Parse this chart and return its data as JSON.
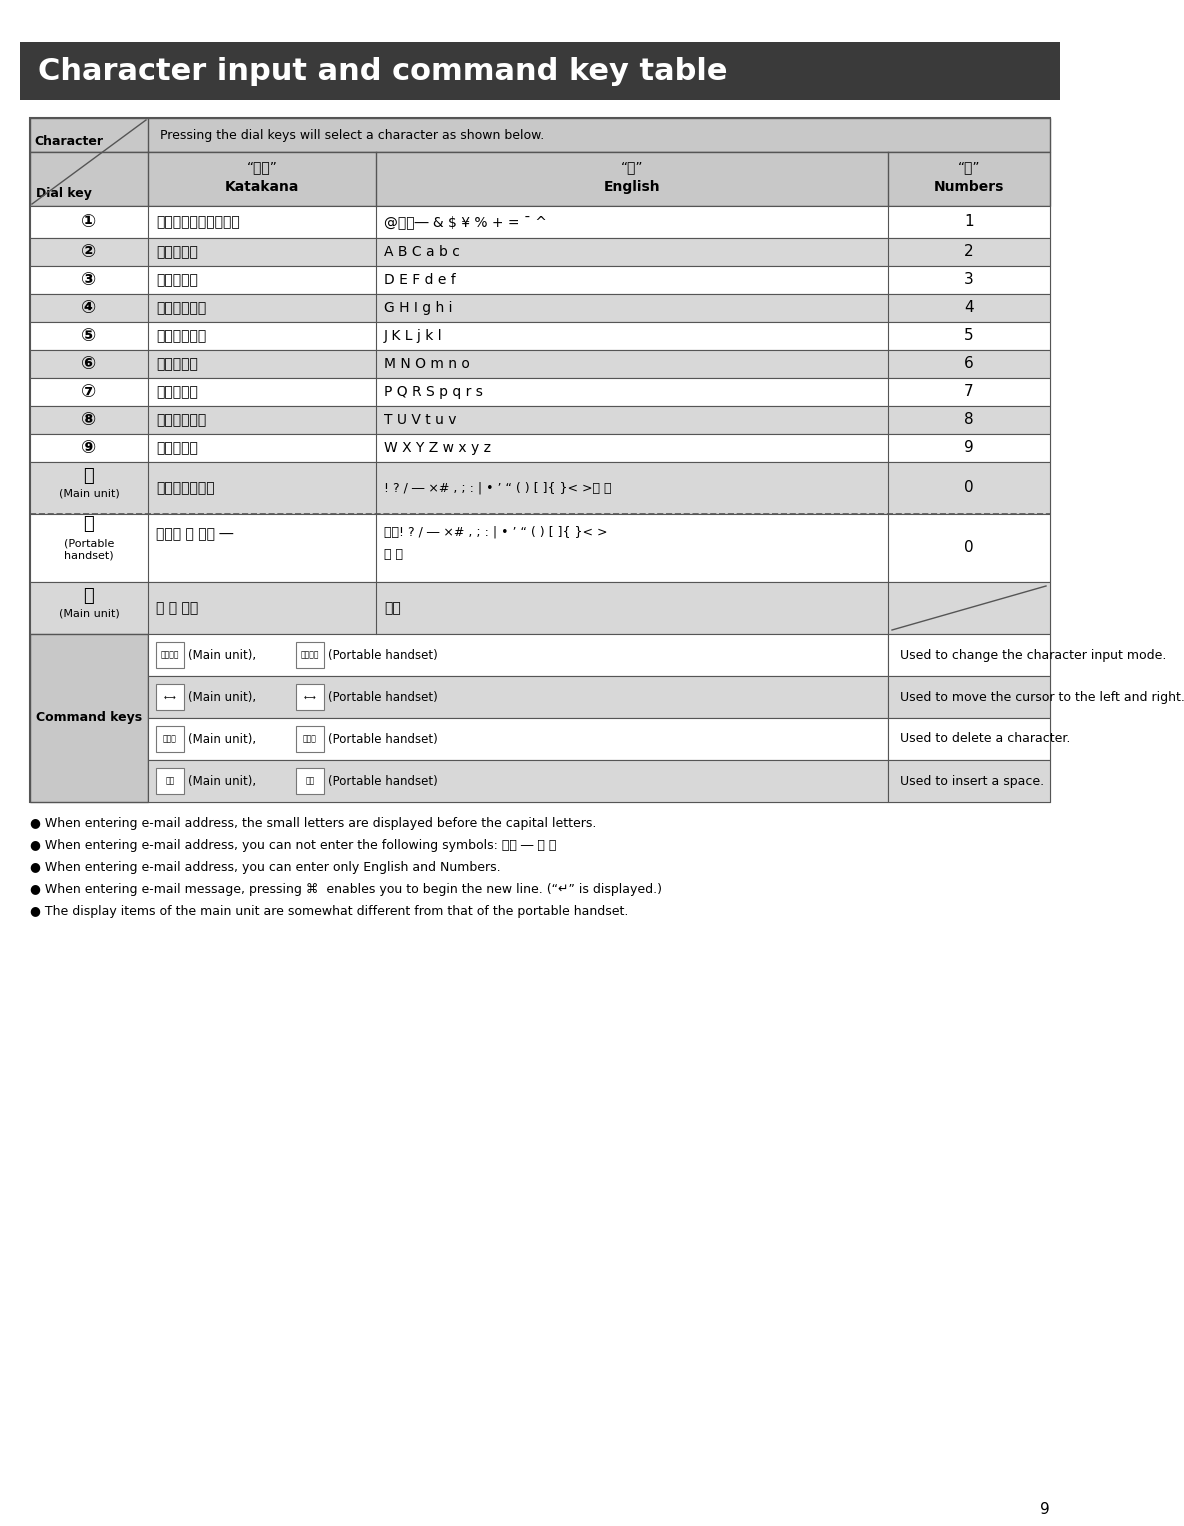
{
  "title": "Character input and command key table",
  "title_bg": "#3a3a3a",
  "title_color": "#ffffff",
  "header_note": "Pressing the dial keys will select a character as shown below.",
  "kana_header": "“カナ”",
  "kana_sub": "Katakana",
  "eng_header": "“英”",
  "eng_sub": "English",
  "num_header": "“数”",
  "num_sub": "Numbers",
  "keys": [
    "①",
    "②",
    "③",
    "④",
    "⑤",
    "⑥",
    "⑦",
    "⑧",
    "⑨"
  ],
  "katakana_rows": [
    "アイウエオぁぃぅぇぉ",
    "カキクケコ",
    "サシスセソ",
    "タチツテトッ",
    "ナニヌネノノ",
    "ハヒフヘホ",
    "マミムメモ",
    "ヤユヨャュョ",
    "ラリルレロ"
  ],
  "english_rows": [
    "@、．― & $ ¥ % + = ¯ ^",
    "A B C a b c",
    "D E F d e f",
    "G H I g h i",
    "J K L j k l",
    "M N O m n o",
    "P Q R S p q r s",
    "T U V t u v",
    "W X Y Z w x y z"
  ],
  "numbers_rows": [
    "1",
    "2",
    "3",
    "4",
    "5",
    "6",
    "7",
    "8",
    "9"
  ],
  "key0_main": "⓪",
  "key0_main_sub": "(Main unit)",
  "katakana0_main": "ワンー！？（）",
  "english0_main": "! ? / ― ×# , ; : | • ’ “ ( ) [ ]{ }< >「 」",
  "number0": "0",
  "key0_portable": "⓪",
  "key0_portable_sub1": "(Portable",
  "key0_portable_sub2": "handset)",
  "katakana0_portable": "ワン゛ ゜ 、。 ―",
  "english0_portable_line1": "、。! ? / ― ×# , ; : | • ’ “ ( ) [ ]{ }< >",
  "english0_portable_line2": "「 」",
  "key_star": "ⓧ",
  "key_star_sub": "(Main unit)",
  "katakana_star": "゛ ゜ 、。",
  "english_star": "、。",
  "cmd_label": "Command keys",
  "cmd_icon1a": "文字切替",
  "cmd_icon1b": "文字切替",
  "cmd_desc1": "Used to change the character input mode.",
  "cmd_icon2a": "←→",
  "cmd_icon2b": "←→",
  "cmd_desc2": "Used to move the cursor to the left and right.",
  "cmd_icon3a": "クリア",
  "cmd_icon3b": "クリア",
  "cmd_desc3": "Used to delete a character.",
  "cmd_icon4a": "音量",
  "cmd_icon4b": "音量",
  "cmd_desc4": "Used to insert a space.",
  "main_unit_txt": "(Main unit),",
  "portable_txt": "(Portable handset)",
  "bullets": [
    "● When entering e-mail address, the small letters are displayed before the capital letters.",
    "● When entering e-mail address, you can not enter the following symbols: 、。 ― 「 」",
    "● When entering e-mail address, you can enter only English and Numbers.",
    "● When entering e-mail message, pressing ⌘  enables you to begin the new line. (“↵” is displayed.)",
    "● The display items of the main unit are somewhat different from that of the portable handset."
  ],
  "page_number": "9",
  "bg_color": "#ffffff",
  "table_border": "#555555",
  "header_bg": "#c8c8c8",
  "row_bg_odd": "#ffffff",
  "row_bg_even": "#d8d8d8"
}
